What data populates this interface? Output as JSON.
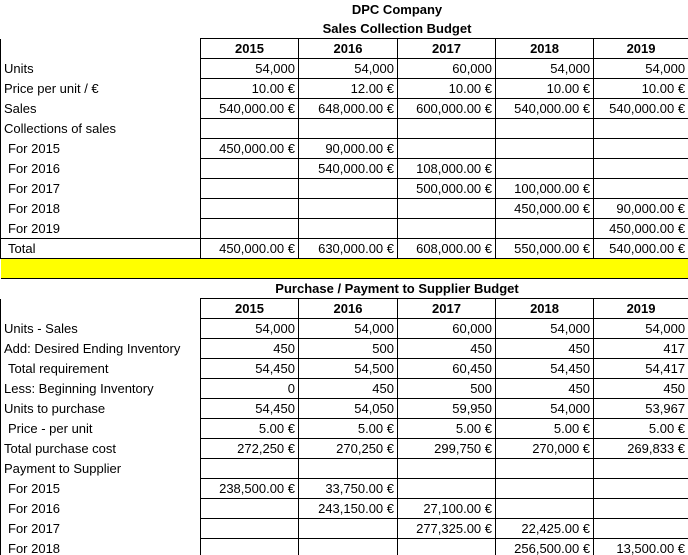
{
  "sheet": {
    "title": "DPC Company",
    "sales": {
      "title": "Sales Collection Budget",
      "years": [
        2015,
        2016,
        2017,
        2018,
        2019
      ],
      "rows": [
        {
          "label": "Units",
          "cells": [
            "54,000",
            "54,000",
            "60,000",
            "54,000",
            "54,000"
          ]
        },
        {
          "label": "Price per unit / €",
          "cells": [
            "10.00 €",
            "12.00 €",
            "10.00 €",
            "10.00 €",
            "10.00 €"
          ]
        },
        {
          "label": "Sales",
          "cells": [
            "540,000.00 €",
            "648,000.00 €",
            "600,000.00 €",
            "540,000.00 €",
            "540,000.00 €"
          ]
        },
        {
          "label": "Collections of sales",
          "cells": [
            null,
            null,
            null,
            null,
            null
          ]
        },
        {
          "label": "For 2015",
          "cells": [
            "450,000.00 €",
            "90,000.00 €",
            null,
            null,
            null
          ]
        },
        {
          "label": "For 2016",
          "cells": [
            null,
            "540,000.00 €",
            "108,000.00 €",
            null,
            null
          ]
        },
        {
          "label": "For 2017",
          "cells": [
            null,
            null,
            "500,000.00 €",
            "100,000.00 €",
            null
          ]
        },
        {
          "label": "For 2018",
          "cells": [
            null,
            null,
            null,
            "450,000.00 €",
            "90,000.00 €"
          ]
        },
        {
          "label": "For 2019",
          "cells": [
            null,
            null,
            null,
            null,
            "450,000.00 €"
          ]
        },
        {
          "label": "Total",
          "cells": [
            "450,000.00 €",
            "630,000.00 €",
            "608,000.00 €",
            "550,000.00 €",
            "540,000.00 €"
          ]
        }
      ]
    },
    "purchase": {
      "title": "Purchase / Payment to Supplier Budget",
      "years": [
        2015,
        2016,
        2017,
        2018,
        2019
      ],
      "rows": [
        {
          "label": "Units - Sales",
          "cells": [
            "54,000",
            "54,000",
            "60,000",
            "54,000",
            "54,000"
          ]
        },
        {
          "label": "Add: Desired Ending Inventory",
          "cells": [
            "450",
            "500",
            "450",
            "450",
            "417"
          ]
        },
        {
          "label": "Total requirement",
          "cells": [
            "54,450",
            "54,500",
            "60,450",
            "54,450",
            "54,417"
          ]
        },
        {
          "label": "Less: Beginning Inventory",
          "cells": [
            "0",
            "450",
            "500",
            "450",
            "450"
          ]
        },
        {
          "label": "Units to purchase",
          "cells": [
            "54,450",
            "54,050",
            "59,950",
            "54,000",
            "53,967"
          ]
        },
        {
          "label": "Price - per unit",
          "cells": [
            "5.00 €",
            "5.00 €",
            "5.00 €",
            "5.00 €",
            "5.00 €"
          ]
        },
        {
          "label": "Total purchase cost",
          "cells": [
            "272,250 €",
            "270,250 €",
            "299,750 €",
            "270,000 €",
            "269,833 €"
          ]
        },
        {
          "label": "Payment to Supplier",
          "cells": [
            null,
            null,
            null,
            null,
            null
          ]
        },
        {
          "label": "For 2015",
          "cells": [
            "238,500.00 €",
            "33,750.00 €",
            null,
            null,
            null
          ]
        },
        {
          "label": "For 2016",
          "cells": [
            null,
            "243,150.00 €",
            "27,100.00 €",
            null,
            null
          ]
        },
        {
          "label": "For 2017",
          "cells": [
            null,
            null,
            "277,325.00 €",
            "22,425.00 €",
            null
          ]
        },
        {
          "label": "For 2018",
          "cells": [
            null,
            null,
            null,
            "256,500.00 €",
            "13,500.00 €"
          ]
        }
      ]
    }
  }
}
